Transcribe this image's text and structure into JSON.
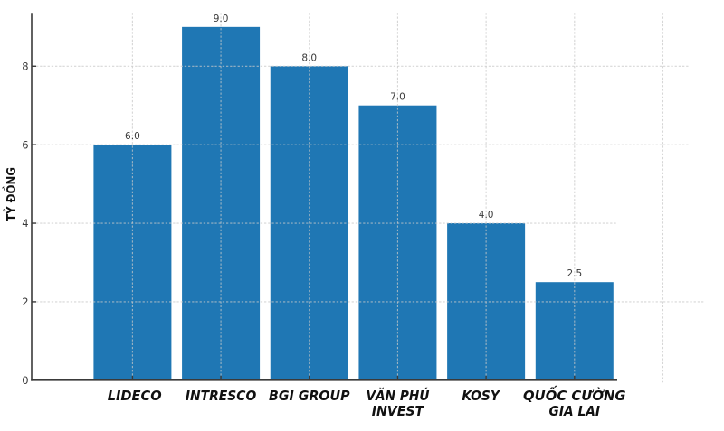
{
  "chart_data": {
    "type": "bar",
    "title": "",
    "xlabel": "",
    "ylabel": "TỶ ĐỒNG",
    "categories": [
      "LIDECO",
      "INTRESCO",
      "BGI GROUP",
      "VĂN PHÚ\nINVEST",
      "KOSY",
      "QUỐC CƯỜNG\nGIA LAI"
    ],
    "values": [
      6.0,
      9.0,
      8.0,
      7.0,
      4.0,
      2.5
    ],
    "value_labels": [
      "6.0",
      "9.0",
      "8.0",
      "7.0",
      "4.0",
      "2.5"
    ],
    "yticks": [
      0,
      2,
      4,
      6,
      8
    ],
    "ylim": [
      0,
      9.36
    ],
    "grid": "dashed, light gray, drawn above bars",
    "legend_position": "none",
    "colors": {
      "bar": "#1f77b4",
      "axis": "#3a3a3a",
      "gridline": "#c8c8c8",
      "ytick_label": "#3a3a3a",
      "value_label": "#3a3a3a",
      "category_label": "#111111",
      "ylabel": "#111111",
      "background": "#ffffff"
    }
  }
}
